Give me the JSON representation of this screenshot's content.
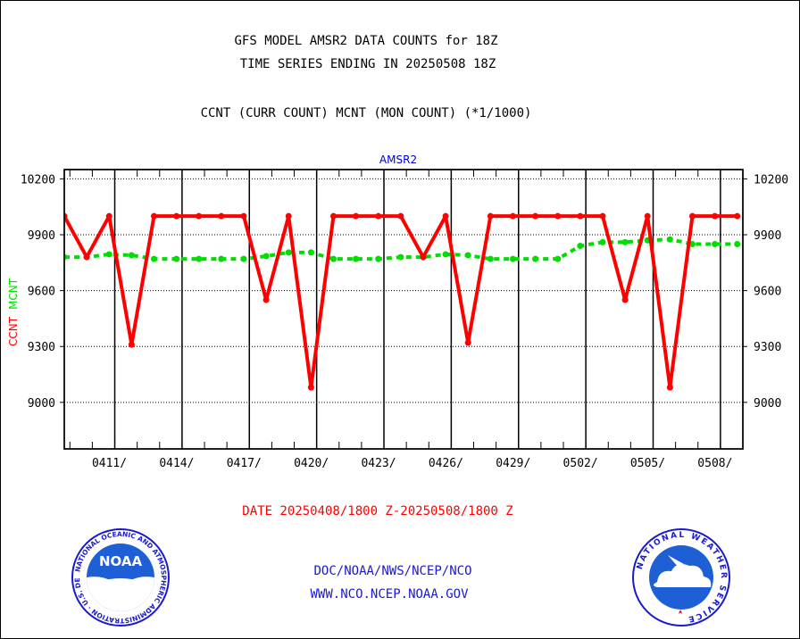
{
  "header": {
    "title_line1": "GFS MODEL AMSR2 DATA COUNTS for 18Z",
    "title_line2": "TIME SERIES ENDING IN 20250508 18Z",
    "subtitle": "CCNT (CURR COUNT) MCNT (MON COUNT) (*1/1000)"
  },
  "footer": {
    "date_range": "DATE 20250408/1800 Z-20250508/1800 Z",
    "credit": "DOC/NOAA/NWS/NCEP/NCO",
    "url": "WWW.NCO.NCEP.NOAA.GOV"
  },
  "logos": {
    "left": {
      "name": "noaa-logo",
      "text": "NOAA",
      "ring_text": "NATIONAL OCEANIC AND ATMOSPHERIC ADMINISTRATION · U.S. DEPARTMENT OF COMMERCE"
    },
    "right": {
      "name": "nws-logo",
      "ring_text": "NATIONAL WEATHER SERVICE"
    }
  },
  "colors": {
    "ccnt": "#ff0000",
    "mcnt": "#00dd00",
    "panel_title": "#0000cc",
    "footer_red": "#ff0000",
    "footer_blue": "#1a1acc"
  },
  "chart_data": {
    "type": "line",
    "title": "AMSR2",
    "ylabel_series": [
      "CCNT",
      "MCNT"
    ],
    "ylim": [
      8750,
      10250
    ],
    "yticks": [
      9000,
      9300,
      9600,
      9900,
      10200
    ],
    "yticklabels": [
      "9000",
      "9300",
      "9600",
      "9900",
      "10200"
    ],
    "xlim": [
      0,
      30.25
    ],
    "xticks": [
      2.25,
      5.25,
      8.25,
      11.25,
      14.25,
      17.25,
      20.25,
      23.25,
      26.25,
      29.25
    ],
    "xticklabels": [
      "0411/",
      "0414/",
      "0417/",
      "0420/",
      "0423/",
      "0426/",
      "0429/",
      "0502/",
      "0505/",
      "0508/"
    ],
    "grid": true,
    "series": [
      {
        "name": "CCNT",
        "style": "solid",
        "x": [
          0,
          1,
          2,
          3,
          4,
          5,
          6,
          7,
          8,
          9,
          10,
          11,
          12,
          13,
          14,
          15,
          16,
          17,
          18,
          19,
          20,
          21,
          22,
          23,
          24,
          25,
          26,
          27,
          28,
          29,
          30
        ],
        "values": [
          10000,
          9780,
          10000,
          9310,
          10000,
          10000,
          10000,
          10000,
          10000,
          9550,
          10000,
          9080,
          10000,
          10000,
          10000,
          10000,
          9780,
          10000,
          9320,
          10000,
          10000,
          10000,
          10000,
          10000,
          10000,
          9550,
          10000,
          9080,
          10000,
          10000,
          10000
        ]
      },
      {
        "name": "MCNT",
        "style": "dashed",
        "x": [
          0,
          1,
          2,
          3,
          4,
          5,
          6,
          7,
          8,
          9,
          10,
          11,
          12,
          13,
          14,
          15,
          16,
          17,
          18,
          19,
          20,
          21,
          22,
          23,
          24,
          25,
          26,
          27,
          28,
          29,
          30
        ],
        "values": [
          9780,
          9780,
          9795,
          9790,
          9770,
          9770,
          9770,
          9770,
          9770,
          9785,
          9805,
          9805,
          9770,
          9770,
          9770,
          9780,
          9780,
          9795,
          9790,
          9770,
          9770,
          9770,
          9770,
          9840,
          9860,
          9860,
          9870,
          9875,
          9850,
          9850,
          9850
        ]
      }
    ]
  }
}
